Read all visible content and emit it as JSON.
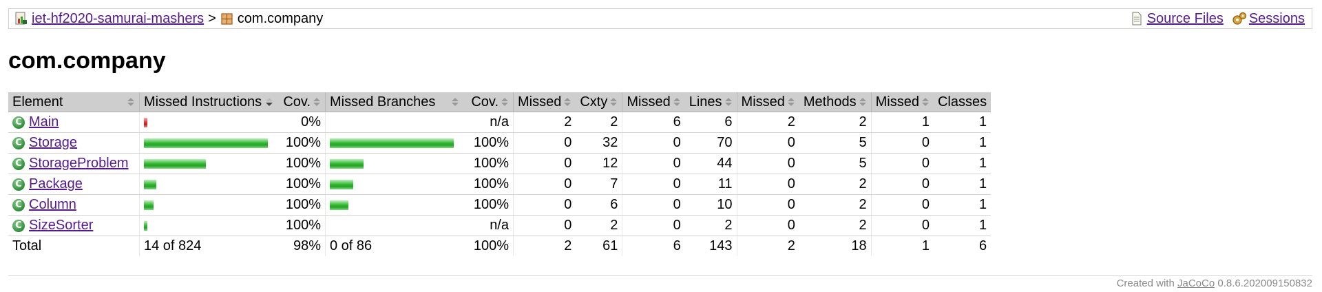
{
  "breadcrumb": {
    "project_icon": "report-icon",
    "project_label": "iet-hf2020-samurai-mashers",
    "separator": ">",
    "package_icon": "package-icon",
    "package_label": "com.company",
    "source_files_icon": "source-files-icon",
    "source_files_label": "Source Files",
    "sessions_icon": "sessions-icon",
    "sessions_label": "Sessions"
  },
  "page_title": "com.company",
  "table": {
    "headers": {
      "element": "Element",
      "missed_instructions": "Missed Instructions",
      "cov_instructions": "Cov.",
      "missed_branches": "Missed Branches",
      "cov_branches": "Cov.",
      "missed_cxty": "Missed",
      "cxty": "Cxty",
      "missed_lines": "Missed",
      "lines": "Lines",
      "missed_methods": "Missed",
      "methods": "Methods",
      "missed_classes": "Missed",
      "classes": "Classes"
    },
    "rows": [
      {
        "name": "Main",
        "instr_green": 0,
        "instr_red": 0.03,
        "instr_cov": "0%",
        "br_green": 0,
        "br_red": 0,
        "br_cov": "n/a",
        "missed_cxty": "2",
        "cxty": "2",
        "missed_lines": "6",
        "lines": "6",
        "missed_methods": "2",
        "methods": "2",
        "missed_classes": "1",
        "classes": "1"
      },
      {
        "name": "Storage",
        "instr_green": 1.0,
        "instr_red": 0,
        "instr_cov": "100%",
        "br_green": 1.0,
        "br_red": 0,
        "br_cov": "100%",
        "missed_cxty": "0",
        "cxty": "32",
        "missed_lines": "0",
        "lines": "70",
        "missed_methods": "0",
        "methods": "5",
        "missed_classes": "0",
        "classes": "1"
      },
      {
        "name": "StorageProblem",
        "instr_green": 0.5,
        "instr_red": 0,
        "instr_cov": "100%",
        "br_green": 0.27,
        "br_red": 0,
        "br_cov": "100%",
        "missed_cxty": "0",
        "cxty": "12",
        "missed_lines": "0",
        "lines": "44",
        "missed_methods": "0",
        "methods": "5",
        "missed_classes": "0",
        "classes": "1"
      },
      {
        "name": "Package",
        "instr_green": 0.1,
        "instr_red": 0,
        "instr_cov": "100%",
        "br_green": 0.19,
        "br_red": 0,
        "br_cov": "100%",
        "missed_cxty": "0",
        "cxty": "7",
        "missed_lines": "0",
        "lines": "11",
        "missed_methods": "0",
        "methods": "2",
        "missed_classes": "0",
        "classes": "1"
      },
      {
        "name": "Column",
        "instr_green": 0.08,
        "instr_red": 0,
        "instr_cov": "100%",
        "br_green": 0.15,
        "br_red": 0,
        "br_cov": "100%",
        "missed_cxty": "0",
        "cxty": "6",
        "missed_lines": "0",
        "lines": "10",
        "missed_methods": "0",
        "methods": "2",
        "missed_classes": "0",
        "classes": "1"
      },
      {
        "name": "SizeSorter",
        "instr_green": 0.03,
        "instr_red": 0,
        "instr_cov": "100%",
        "br_green": 0,
        "br_red": 0,
        "br_cov": "n/a",
        "missed_cxty": "0",
        "cxty": "2",
        "missed_lines": "0",
        "lines": "2",
        "missed_methods": "0",
        "methods": "2",
        "missed_classes": "0",
        "classes": "1"
      }
    ],
    "total": {
      "label": "Total",
      "instructions": "14 of 824",
      "instr_cov": "98%",
      "branches": "0 of 86",
      "br_cov": "100%",
      "missed_cxty": "2",
      "cxty": "61",
      "missed_lines": "6",
      "lines": "143",
      "missed_methods": "2",
      "methods": "18",
      "missed_classes": "1",
      "classes": "6"
    }
  },
  "footer": {
    "prefix": "Created with",
    "link": "JaCoCo",
    "version": "0.8.6.202009150832"
  },
  "colors": {
    "header_bg": "#cecece",
    "bar_green": "#2fb52f",
    "bar_red": "#e02a2a",
    "link": "#551a8b"
  }
}
